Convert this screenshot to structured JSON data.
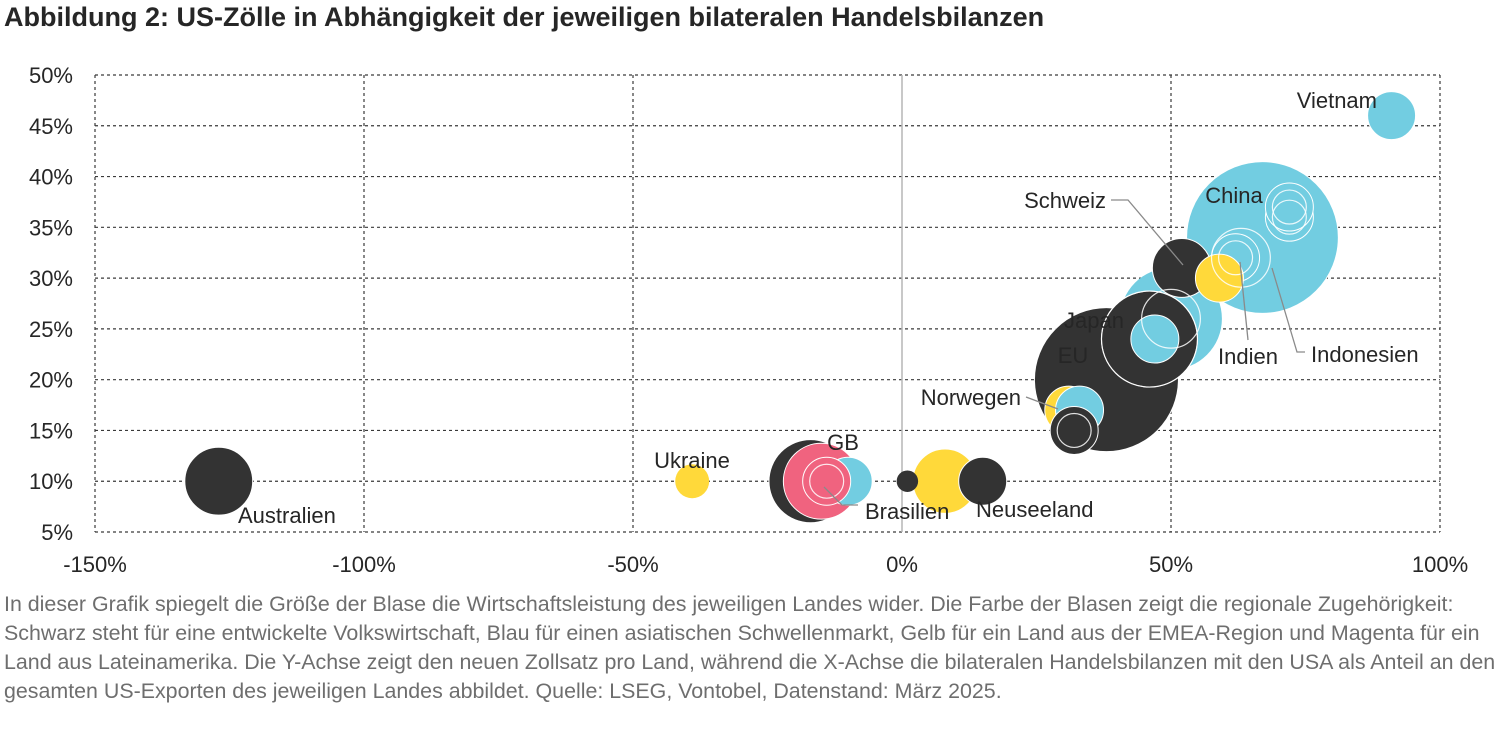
{
  "title": "Abbildung 2: US-Zölle in Abhängigkeit der jeweiligen bilateralen Handelsbilanzen",
  "caption": "In dieser Grafik spiegelt die Größe der Blase die Wirtschaftsleistung des jeweiligen Landes wider. Die Farbe der Blasen zeigt die regionale Zugehörigkeit: Schwarz steht für eine entwickelte Volkswirtschaft, Blau für einen asiatischen Schwellenmarkt, Gelb für ein Land aus der EMEA-Region und Magenta für ein Land aus Lateinamerika. Die Y-Achse zeigt den neuen Zollsatz pro Land, während die X-Achse die bilateralen Handelsbilanzen mit den USA als Anteil an den gesamten US-Exporten des jeweiligen Landes abbildet. Quelle: LSEG, Vontobel, Datenstand: März 2025.",
  "colors": {
    "developed": "#333333",
    "asia_em": "#72cde1",
    "emea": "#ffd93a",
    "latam": "#f0637f"
  },
  "chart_data": {
    "type": "scatter",
    "bubble": true,
    "xlim": [
      -1.5,
      1.0
    ],
    "ylim": [
      0.05,
      0.5
    ],
    "x_ticks": [
      -1.5,
      -1.0,
      -0.5,
      0.0,
      0.5,
      1.0
    ],
    "y_ticks": [
      0.05,
      0.1,
      0.15,
      0.2,
      0.25,
      0.3,
      0.35,
      0.4,
      0.45,
      0.5
    ],
    "x_tick_labels": [
      "-150%",
      "-100%",
      "-50%",
      "0%",
      "50%",
      "100%"
    ],
    "y_tick_labels": [
      "5%",
      "10%",
      "15%",
      "20%",
      "25%",
      "30%",
      "35%",
      "40%",
      "45%",
      "50%"
    ],
    "grid": true,
    "points": [
      {
        "label": "China",
        "x": 0.67,
        "y": 0.34,
        "size": 10,
        "group": "asia_em"
      },
      {
        "label": "",
        "x": 0.38,
        "y": 0.2,
        "size": 9,
        "group": "developed"
      },
      {
        "label": "EU",
        "x": 0.46,
        "y": 0.24,
        "size": 4,
        "group": "developed"
      },
      {
        "label": "Japan",
        "x": 0.5,
        "y": 0.26,
        "size": 4.5,
        "group": "asia_em"
      },
      {
        "label": "Indien",
        "x": 0.63,
        "y": 0.32,
        "size": 2,
        "group": "asia_em"
      },
      {
        "label": "Indonesien",
        "x": 0.72,
        "y": 0.36,
        "size": 1,
        "group": "asia_em"
      },
      {
        "label": "",
        "x": 0.72,
        "y": 0.37,
        "size": 1,
        "group": "asia_em"
      },
      {
        "label": "",
        "x": 0.62,
        "y": 0.32,
        "size": 1,
        "group": "asia_em"
      },
      {
        "label": "Schweiz",
        "x": 0.52,
        "y": 0.31,
        "size": 1.5,
        "group": "developed"
      },
      {
        "label": "",
        "x": 0.59,
        "y": 0.3,
        "size": 1,
        "group": "emea"
      },
      {
        "label": "",
        "x": 0.47,
        "y": 0.24,
        "size": 1,
        "group": "asia_em"
      },
      {
        "label": "Vietnam",
        "x": 0.91,
        "y": 0.46,
        "size": 1,
        "group": "asia_em"
      },
      {
        "label": "Norwegen",
        "x": 0.31,
        "y": 0.17,
        "size": 1,
        "group": "emea"
      },
      {
        "label": "",
        "x": 0.33,
        "y": 0.17,
        "size": 1,
        "group": "asia_em"
      },
      {
        "label": "",
        "x": 0.32,
        "y": 0.15,
        "size": 1,
        "group": "developed"
      },
      {
        "label": "GB",
        "x": -0.17,
        "y": 0.1,
        "size": 3,
        "group": "developed"
      },
      {
        "label": "Brasilien",
        "x": -0.15,
        "y": 0.1,
        "size": 2.5,
        "group": "latam"
      },
      {
        "label": "",
        "x": -0.1,
        "y": 0.1,
        "size": 1,
        "group": "asia_em"
      },
      {
        "label": "",
        "x": -0.14,
        "y": 0.1,
        "size": 1,
        "group": "latam"
      },
      {
        "label": "Australien",
        "x": -1.27,
        "y": 0.1,
        "size": 2,
        "group": "developed"
      },
      {
        "label": "Ukraine",
        "x": -0.39,
        "y": 0.1,
        "size": 0.5,
        "group": "emea"
      },
      {
        "label": "",
        "x": 0.08,
        "y": 0.1,
        "size": 1.8,
        "group": "emea"
      },
      {
        "label": "Neuseeland",
        "x": 0.15,
        "y": 0.1,
        "size": 1,
        "group": "developed"
      },
      {
        "label": "",
        "x": 0.01,
        "y": 0.1,
        "size": 0.2,
        "group": "developed"
      }
    ]
  }
}
